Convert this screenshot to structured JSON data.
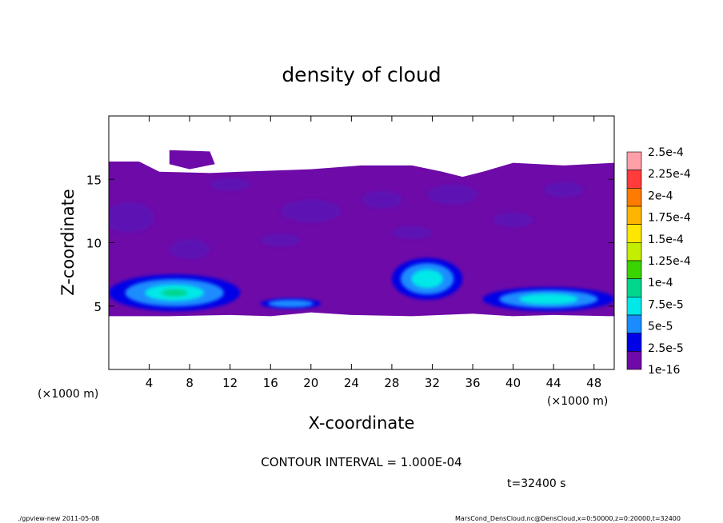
{
  "chart_data": {
    "type": "heatmap",
    "title": "density of cloud",
    "xlabel": "X-coordinate",
    "ylabel": "Z-coordinate",
    "x_unit_left": "(×1000 m)",
    "x_unit_right": "(×1000 m)",
    "xlim": [
      0,
      50
    ],
    "ylim": [
      0,
      20
    ],
    "x_ticks": [
      "4",
      "8",
      "12",
      "16",
      "20",
      "24",
      "28",
      "32",
      "36",
      "40",
      "44",
      "48"
    ],
    "x_tick_values": [
      4,
      8,
      12,
      16,
      20,
      24,
      28,
      32,
      36,
      40,
      44,
      48
    ],
    "y_ticks": [
      "5",
      "10",
      "15"
    ],
    "y_tick_values": [
      5,
      10,
      15
    ],
    "colorbar": {
      "labels": [
        "2.5e-4",
        "2.25e-4",
        "2e-4",
        "1.75e-4",
        "1.5e-4",
        "1.25e-4",
        "1e-4",
        "7.5e-5",
        "5e-5",
        "2.5e-5",
        "1e-16"
      ],
      "colors": [
        "#ff9fa8",
        "#ff3b3b",
        "#ff7a00",
        "#ffb400",
        "#ffe600",
        "#c4ee00",
        "#3ad400",
        "#00d68c",
        "#00e8e8",
        "#1a8cff",
        "#0000e6",
        "#6e0aa8"
      ]
    },
    "cloud_layer": {
      "z_bottom": 4.2,
      "z_top": 16.4,
      "base_value": "1e-16"
    },
    "features": [
      {
        "name": "low layer left",
        "x": [
          0,
          13
        ],
        "z": [
          4.6,
          7.5
        ],
        "max_value": "1e-4"
      },
      {
        "name": "mid patch",
        "x": [
          28,
          35
        ],
        "z": [
          5.5,
          8.8
        ],
        "max_value": "7.5e-5"
      },
      {
        "name": "low layer right",
        "x": [
          37,
          50
        ],
        "z": [
          4.6,
          6.5
        ],
        "max_value": "7.5e-5"
      },
      {
        "name": "low patch center",
        "x": [
          15,
          21
        ],
        "z": [
          4.8,
          5.6
        ],
        "max_value": "5e-5"
      }
    ],
    "contour_interval": "CONTOUR INTERVAL = 1.000E-04",
    "time_label": "t=32400 s",
    "footer_left": "./gpview-new  2011-05-08",
    "footer_right": "MarsCond_DensCloud.nc@DensCloud,x=0:50000,z=0:20000,t=32400"
  }
}
